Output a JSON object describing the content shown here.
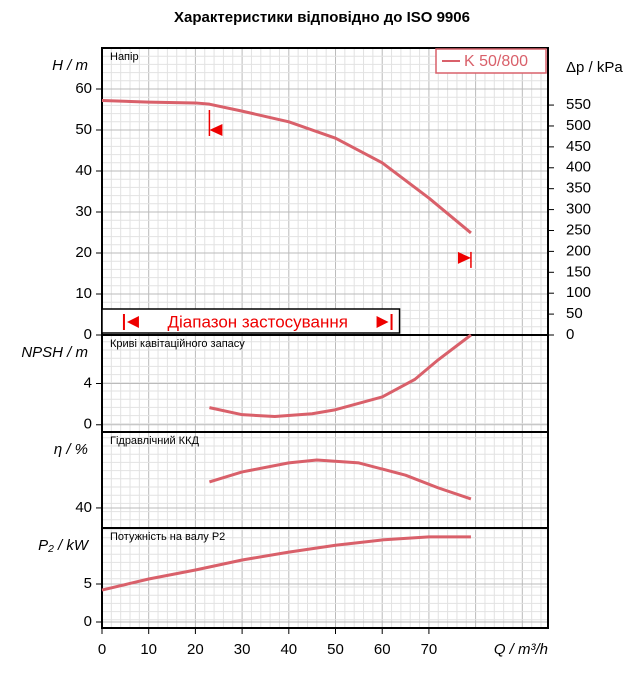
{
  "title": "Характеристики відповідно до ISO 9906",
  "chart_data": [
    {
      "type": "line",
      "panel_label": "Напір",
      "ylabel": "H / m",
      "y2label": "Δp / kPa",
      "xlim": [
        0,
        95.5
      ],
      "ylim": [
        0,
        70
      ],
      "yticks": [
        0,
        10,
        20,
        30,
        40,
        50,
        60
      ],
      "y2lim": [
        0,
        686.5
      ],
      "y2ticks": [
        0,
        50,
        100,
        150,
        200,
        250,
        300,
        350,
        400,
        450,
        500,
        550
      ],
      "grid": true,
      "legend": "upper right",
      "x": [
        0,
        10,
        20,
        23,
        30,
        40,
        50,
        60,
        70,
        79
      ],
      "series": [
        {
          "name": "K 50/800",
          "color": "#d9606a",
          "values": [
            57.2,
            56.8,
            56.6,
            56.3,
            54.6,
            52,
            48,
            42,
            33.4,
            24.9
          ]
        }
      ],
      "markers": [
        {
          "x": 23,
          "y": 50
        },
        {
          "x": 79,
          "y": 18.8
        }
      ],
      "application_range": {
        "label": "Діапазон застосування",
        "x": [
          4.7,
          62
        ]
      }
    },
    {
      "type": "line",
      "panel_label": "Криві кавітаційного запасу",
      "ylabel": "NPSH / m",
      "xlim": [
        0,
        95.5
      ],
      "ylim": [
        -0.7,
        8.7
      ],
      "yticks": [
        0,
        4
      ],
      "grid": true,
      "x": [
        23,
        30,
        37,
        45,
        50,
        60,
        67,
        72,
        79
      ],
      "series": [
        {
          "name": "K 50/800",
          "color": "#d9606a",
          "values": [
            1.66,
            0.98,
            0.8,
            1.07,
            1.46,
            2.7,
            4.4,
            6.3,
            8.7
          ]
        }
      ]
    },
    {
      "type": "line",
      "panel_label": "Гідравлічний ККД",
      "ylabel": "η / %",
      "xlim": [
        0,
        95.5
      ],
      "ylim": [
        30.2,
        77.1
      ],
      "yticks": [
        40
      ],
      "grid": true,
      "x": [
        23,
        30,
        40,
        46,
        55,
        65,
        72,
        79
      ],
      "series": [
        {
          "name": "K 50/800",
          "color": "#d9606a",
          "values": [
            52.7,
            57.6,
            62,
            63.4,
            62,
            56,
            49.8,
            44.4
          ]
        }
      ]
    },
    {
      "type": "line",
      "panel_label": "Потужність на валу P2",
      "ylabel": "P₂ / kW",
      "xlabel": "Q / m³/h",
      "xlim": [
        0,
        95.5
      ],
      "ylim": [
        -0.79,
        12.37
      ],
      "yticks": [
        0,
        5
      ],
      "grid": true,
      "xticks": [
        0,
        10,
        20,
        30,
        40,
        50,
        60,
        70
      ],
      "x": [
        0,
        10,
        20,
        30,
        40,
        50,
        60,
        70,
        79
      ],
      "series": [
        {
          "name": "K 50/800",
          "color": "#d9606a",
          "values": [
            4.2,
            5.66,
            6.84,
            8.16,
            9.2,
            10.1,
            10.8,
            11.2,
            11.2
          ]
        }
      ]
    }
  ]
}
